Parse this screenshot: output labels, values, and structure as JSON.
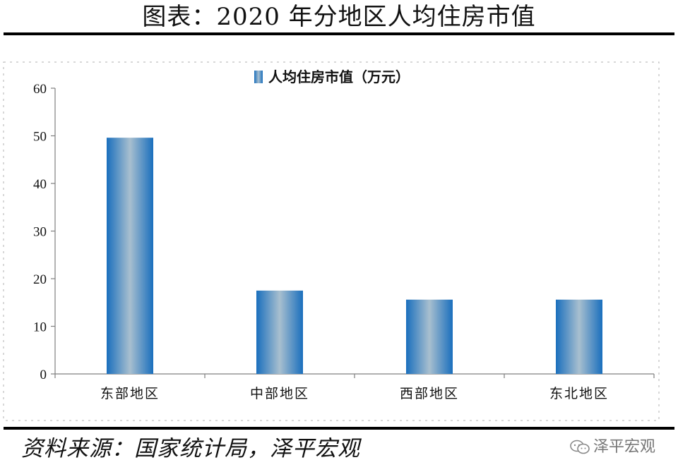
{
  "header": {
    "title": "图表：2020 年分地区人均住房市值"
  },
  "footer": {
    "source": "资料来源：国家统计局，泽平宏观",
    "watermark": "泽平宏观"
  },
  "chart_data": {
    "type": "bar",
    "categories": [
      "东部地区",
      "中部地区",
      "西部地区",
      "东北地区"
    ],
    "series": [
      {
        "name": "人均住房市值（万元）",
        "values": [
          49.6,
          17.5,
          15.6,
          15.6
        ]
      }
    ],
    "ylim": [
      0,
      60
    ],
    "yticks": [
      0,
      10,
      20,
      30,
      40,
      50,
      60
    ],
    "legend": "top-center",
    "grid": false,
    "colors": {
      "bar_edge": "#1a6fbd",
      "bar_center": "#a8bfcf",
      "axis": "#7f7f7f"
    }
  }
}
